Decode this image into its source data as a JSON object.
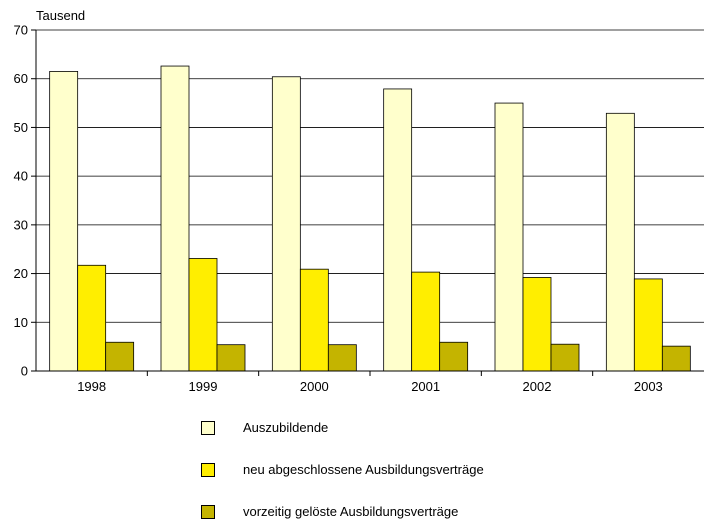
{
  "chart_data": {
    "type": "bar",
    "ylabel": "Tausend",
    "ylim": [
      0,
      70
    ],
    "yticks": [
      0,
      10,
      20,
      30,
      40,
      50,
      60,
      70
    ],
    "grid": true,
    "legend_position": "bottom",
    "categories": [
      "1998",
      "1999",
      "2000",
      "2001",
      "2002",
      "2003"
    ],
    "series": [
      {
        "name": "Auszubildende",
        "color": "#ffffcc",
        "values": [
          61.5,
          62.6,
          60.4,
          57.9,
          55.0,
          52.9
        ]
      },
      {
        "name": "neu abgeschlossene Ausbildungsverträge",
        "color": "#ffee00",
        "values": [
          21.7,
          23.1,
          20.9,
          20.3,
          19.2,
          18.9
        ]
      },
      {
        "name": "vorzeitig gelöste Ausbildungsverträge",
        "color": "#c4b400",
        "values": [
          5.9,
          5.4,
          5.4,
          5.9,
          5.5,
          5.1
        ]
      }
    ]
  }
}
